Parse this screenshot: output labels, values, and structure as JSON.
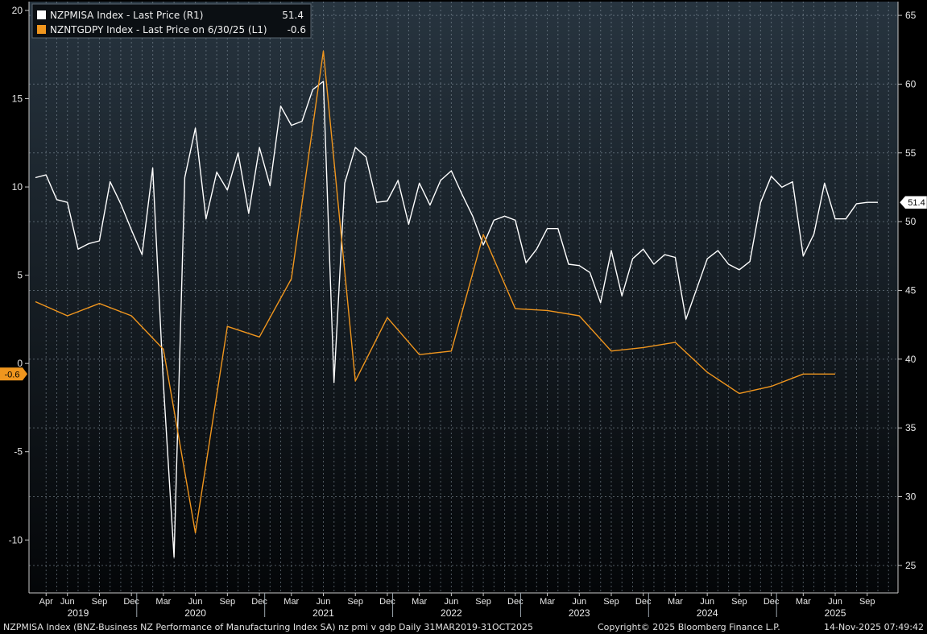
{
  "legend": {
    "series1_label": "NZPMISA Index - Last Price (R1)",
    "series1_value": "51.4",
    "series2_label": "NZNTGDPY Index - Last Price on 6/30/25 (L1)",
    "series2_value": "-0.6"
  },
  "footer": {
    "description": "NZPMISA Index (BNZ-Business NZ Performance of Manufacturing Index SA) nz pmi v gdp Daily 31MAR2019-31OCT2025",
    "copyright": "Copyright© 2025 Bloomberg Finance L.P.",
    "timestamp": "14-Nov-2025 07:49:42"
  },
  "colors": {
    "background": "#000000",
    "plot_top": "#27343f",
    "plot_bottom": "#040608",
    "grid": "#8a98a4",
    "pmi_line": "#ffffff",
    "gdp_line": "#f0961e",
    "text": "#e8e8e8"
  },
  "chart_data": {
    "type": "line",
    "x_start": "2019-03",
    "x_end": "2025-10",
    "left_axis": {
      "ylim": [
        -13,
        20.5
      ],
      "ticks": [
        -10,
        -5,
        0,
        5,
        10,
        15,
        20
      ],
      "tick_labels": [
        "-10",
        "-5",
        "0",
        "5",
        "10",
        "15",
        "20"
      ],
      "flag": "-0.6"
    },
    "right_axis": {
      "ylim": [
        23,
        66
      ],
      "ticks": [
        25,
        30,
        35,
        40,
        45,
        50,
        55,
        60,
        65
      ],
      "tick_labels": [
        "25",
        "30",
        "35",
        "40",
        "45",
        "50",
        "55",
        "60",
        "65"
      ],
      "flag": "51.4"
    },
    "x_month_ticks": [
      {
        "label": "Apr",
        "date": "2019-04"
      },
      {
        "label": "Jun",
        "date": "2019-06"
      },
      {
        "label": "Sep",
        "date": "2019-09"
      },
      {
        "label": "Dec",
        "date": "2019-12"
      },
      {
        "label": "Mar",
        "date": "2020-03"
      },
      {
        "label": "Jun",
        "date": "2020-06"
      },
      {
        "label": "Sep",
        "date": "2020-09"
      },
      {
        "label": "Dec",
        "date": "2020-12"
      },
      {
        "label": "Mar",
        "date": "2021-03"
      },
      {
        "label": "Jun",
        "date": "2021-06"
      },
      {
        "label": "Sep",
        "date": "2021-09"
      },
      {
        "label": "Dec",
        "date": "2021-12"
      },
      {
        "label": "Mar",
        "date": "2022-03"
      },
      {
        "label": "Jun",
        "date": "2022-06"
      },
      {
        "label": "Sep",
        "date": "2022-09"
      },
      {
        "label": "Dec",
        "date": "2022-12"
      },
      {
        "label": "Mar",
        "date": "2023-03"
      },
      {
        "label": "Jun",
        "date": "2023-06"
      },
      {
        "label": "Sep",
        "date": "2023-09"
      },
      {
        "label": "Dec",
        "date": "2023-12"
      },
      {
        "label": "Mar",
        "date": "2024-03"
      },
      {
        "label": "Jun",
        "date": "2024-06"
      },
      {
        "label": "Sep",
        "date": "2024-09"
      },
      {
        "label": "Dec",
        "date": "2024-12"
      },
      {
        "label": "Mar",
        "date": "2025-03"
      },
      {
        "label": "Jun",
        "date": "2025-06"
      },
      {
        "label": "Sep",
        "date": "2025-09"
      }
    ],
    "x_year_labels": [
      {
        "label": "2019",
        "date": "2019-07"
      },
      {
        "label": "2020",
        "date": "2020-06"
      },
      {
        "label": "2021",
        "date": "2021-06"
      },
      {
        "label": "2022",
        "date": "2022-06"
      },
      {
        "label": "2023",
        "date": "2023-06"
      },
      {
        "label": "2024",
        "date": "2024-06"
      },
      {
        "label": "2025",
        "date": "2025-06"
      }
    ],
    "series": [
      {
        "name": "NZPMISA Index - Last Price (R1)",
        "axis": "right",
        "color": "#ffffff",
        "x": [
          "2019-03",
          "2019-04",
          "2019-05",
          "2019-06",
          "2019-07",
          "2019-08",
          "2019-09",
          "2019-10",
          "2019-11",
          "2019-12",
          "2020-01",
          "2020-02",
          "2020-03",
          "2020-04",
          "2020-05",
          "2020-06",
          "2020-07",
          "2020-08",
          "2020-09",
          "2020-10",
          "2020-11",
          "2020-12",
          "2021-01",
          "2021-02",
          "2021-03",
          "2021-04",
          "2021-05",
          "2021-06",
          "2021-07",
          "2021-08",
          "2021-09",
          "2021-10",
          "2021-11",
          "2021-12",
          "2022-01",
          "2022-02",
          "2022-03",
          "2022-04",
          "2022-05",
          "2022-06",
          "2022-07",
          "2022-08",
          "2022-09",
          "2022-10",
          "2022-11",
          "2022-12",
          "2023-01",
          "2023-02",
          "2023-03",
          "2023-04",
          "2023-05",
          "2023-06",
          "2023-07",
          "2023-08",
          "2023-09",
          "2023-10",
          "2023-11",
          "2023-12",
          "2024-01",
          "2024-02",
          "2024-03",
          "2024-04",
          "2024-05",
          "2024-06",
          "2024-07",
          "2024-08",
          "2024-09",
          "2024-10",
          "2024-11",
          "2024-12",
          "2025-01",
          "2025-02",
          "2025-03",
          "2025-04",
          "2025-05",
          "2025-06",
          "2025-07",
          "2025-08",
          "2025-09",
          "2025-10"
        ],
        "values": [
          53.2,
          53.4,
          51.6,
          51.4,
          48.0,
          48.4,
          48.6,
          52.9,
          51.3,
          49.4,
          47.6,
          53.9,
          38.2,
          25.6,
          53.2,
          56.8,
          50.2,
          53.6,
          52.3,
          55.0,
          50.6,
          55.4,
          52.6,
          58.4,
          57.0,
          57.3,
          59.6,
          60.2,
          38.3,
          52.8,
          55.4,
          54.7,
          51.4,
          51.5,
          53.0,
          49.8,
          52.8,
          51.2,
          53.0,
          53.7,
          52.0,
          50.4,
          48.3,
          50.1,
          50.4,
          50.1,
          47.0,
          48.0,
          49.5,
          49.5,
          46.9,
          46.8,
          46.3,
          44.1,
          47.9,
          44.6,
          47.3,
          48.0,
          46.9,
          47.6,
          47.4,
          42.9,
          45.1,
          47.3,
          47.9,
          46.9,
          46.5,
          47.1,
          51.4,
          53.3,
          52.5,
          52.9,
          47.5,
          49.1,
          52.8,
          50.2,
          50.2,
          51.3,
          51.4,
          51.4
        ],
        "last_value": 51.4
      },
      {
        "name": "NZNTGDPY Index - Last Price on 6/30/25 (L1)",
        "axis": "left",
        "color": "#f0961e",
        "x": [
          "2019-03",
          "2019-06",
          "2019-09",
          "2019-12",
          "2020-03",
          "2020-06",
          "2020-09",
          "2020-12",
          "2021-03",
          "2021-06",
          "2021-09",
          "2021-12",
          "2022-03",
          "2022-06",
          "2022-09",
          "2022-12",
          "2023-03",
          "2023-06",
          "2023-09",
          "2023-12",
          "2024-03",
          "2024-06",
          "2024-09",
          "2024-12",
          "2025-03",
          "2025-06"
        ],
        "values": [
          3.5,
          2.7,
          3.4,
          2.7,
          0.8,
          -9.6,
          2.1,
          1.5,
          4.8,
          17.7,
          -1.0,
          2.6,
          0.5,
          0.7,
          7.3,
          3.1,
          3.0,
          2.7,
          0.7,
          0.9,
          1.2,
          -0.5,
          -1.7,
          -1.3,
          -0.6,
          -0.6
        ],
        "last_value": -0.6
      }
    ],
    "xlabel": "",
    "ylabel": "",
    "grid": true,
    "legend_position": "top-left"
  }
}
